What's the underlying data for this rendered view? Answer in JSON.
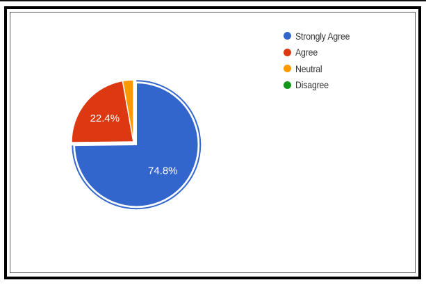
{
  "chart_data": {
    "type": "pie",
    "categories": [
      "Strongly Agree",
      "Agree",
      "Neutral",
      "Disagree"
    ],
    "values": [
      74.8,
      22.4,
      2.8,
      0
    ],
    "colors": [
      "#3366cc",
      "#dc3912",
      "#ff9900",
      "#109618"
    ],
    "data_labels": [
      "74.8%",
      "22.4%",
      "",
      ""
    ],
    "legend_position": "right",
    "exploded_slice": "Strongly Agree"
  }
}
